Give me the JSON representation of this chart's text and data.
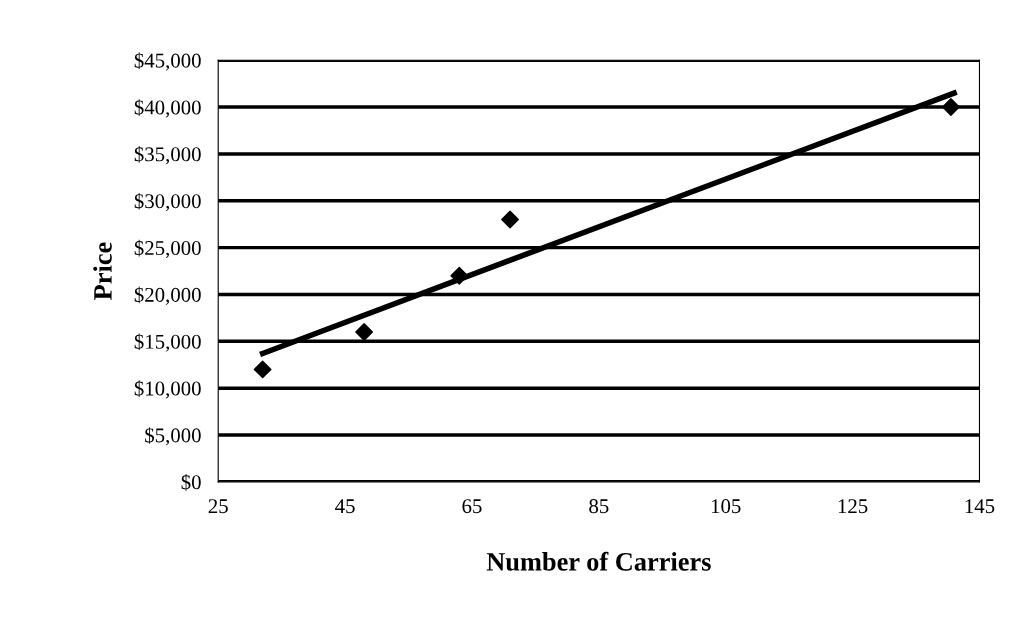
{
  "chart_data": {
    "type": "scatter",
    "xlabel": "Number of Carriers",
    "ylabel": "Price",
    "series": [
      {
        "color": "#000000",
        "marker": "diamond",
        "x": [
          32,
          48,
          63,
          71,
          140.5
        ],
        "values": [
          12000,
          16000,
          22000,
          28000,
          40000
        ]
      },
      {
        "type": "line",
        "color": "#000000",
        "marker": "none",
        "x": [
          32,
          141
        ],
        "values": [
          13700,
          41500
        ]
      }
    ],
    "xlim": [
      25,
      145
    ],
    "xticks": [
      25,
      45,
      65,
      85,
      105,
      125,
      145
    ],
    "ylim": [
      0,
      45000
    ],
    "yticks": [
      {
        "value": 0,
        "label": "$0"
      },
      {
        "value": 5000,
        "label": "$5,000"
      },
      {
        "value": 10000,
        "label": "$10,000"
      },
      {
        "value": 15000,
        "label": "$15,000"
      },
      {
        "value": 20000,
        "label": "$20,000"
      },
      {
        "value": 25000,
        "label": "$25,000"
      },
      {
        "value": 30000,
        "label": "$30,000"
      },
      {
        "value": 35000,
        "label": "$35,000"
      },
      {
        "value": 40000,
        "label": "$40,000"
      },
      {
        "value": 45000,
        "label": "$45,000"
      }
    ],
    "grid": "y"
  }
}
